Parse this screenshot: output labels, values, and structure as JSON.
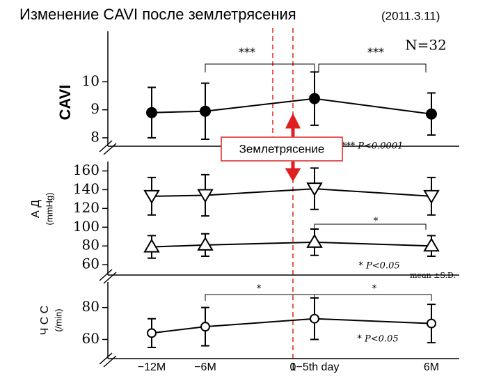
{
  "title": "Изменение CAVI  после землетрясения",
  "title_date": "(2011.3.11)",
  "event_label": "Землетрясение",
  "event_zero": "0",
  "note": "mean ±S.D.",
  "chart_data": [
    {
      "type": "line",
      "ylabel": "CAVI",
      "ylim": [
        7.7,
        11.8
      ],
      "yticks": [
        8,
        9,
        10
      ],
      "annotations": [
        "***",
        "***",
        "N=32",
        "*** P<0.0001"
      ],
      "series": [
        {
          "color": "#000000",
          "marker": "filled-circle",
          "values": [
            8.9,
            8.95,
            9.4,
            8.85
          ],
          "errors": [
            0.9,
            1.0,
            0.95,
            0.75
          ]
        }
      ]
    },
    {
      "type": "line",
      "ylabel": "А Д",
      "ylabel_unit": "(mmHg)",
      "ylim": [
        49,
        170
      ],
      "yticks": [
        60,
        80,
        100,
        120,
        140,
        160
      ],
      "annotations": [
        "*",
        "* P<0.05"
      ],
      "series": [
        {
          "color": "#000000",
          "marker": "down-triangle",
          "values": [
            133,
            134,
            141,
            133
          ],
          "errors": [
            20,
            22,
            22,
            20
          ]
        },
        {
          "color": "#000000",
          "marker": "up-triangle",
          "values": [
            79,
            81,
            84,
            80
          ],
          "errors": [
            12,
            12,
            14,
            11
          ]
        }
      ]
    },
    {
      "type": "line",
      "ylabel": "Ч С С",
      "ylabel_unit": "(/min)",
      "ylim": [
        48,
        96
      ],
      "yticks": [
        60,
        80
      ],
      "categories": [
        "−12M",
        "−6M",
        "1−5th  day",
        "6M"
      ],
      "annotations": [
        "*",
        "*",
        "* P<0.05"
      ],
      "series": [
        {
          "color": "#000000",
          "marker": "open-circle",
          "values": [
            64,
            68,
            73,
            70
          ],
          "errors": [
            9,
            12,
            13,
            12
          ]
        }
      ]
    }
  ]
}
